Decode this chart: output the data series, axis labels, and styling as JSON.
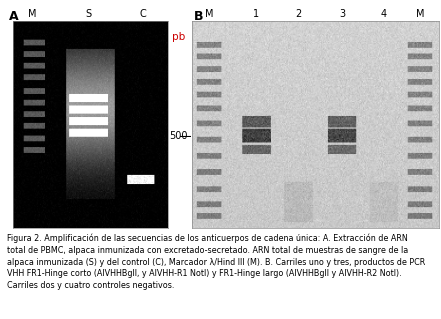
{
  "fig_width": 4.41,
  "fig_height": 3.19,
  "dpi": 100,
  "background_color": "#ffffff",
  "label_A": "A",
  "label_B": "B",
  "label_pb": "pb",
  "label_500": "500",
  "panel_A_labels": [
    "M",
    "S",
    "C"
  ],
  "panel_B_labels": [
    "M",
    "1",
    "2",
    "3",
    "4",
    "M"
  ],
  "caption_line1": "Figura 2. Amplificación de las secuencias de los anticuerpos de cadena única: A. Extracción de ARN",
  "caption_line2": "total de PBMC, alpaca inmunizada con excretado-secretado. ARN total de muestras de sangre de la",
  "caption_line3": "alpaca inmunizada (S) y del control (C), Marcador λ/Hind III (M). B. Carriles uno y tres, productos de PCR",
  "caption_line4": "VHH FR1-Hinge corto (AlVHHBglI, y AlVHH-R1 NotI) y FR1-Hinge largo (AlVHHBglI y AlVHH-R2 NotI).",
  "caption_line5": "Carriles dos y cuatro controles negativos."
}
